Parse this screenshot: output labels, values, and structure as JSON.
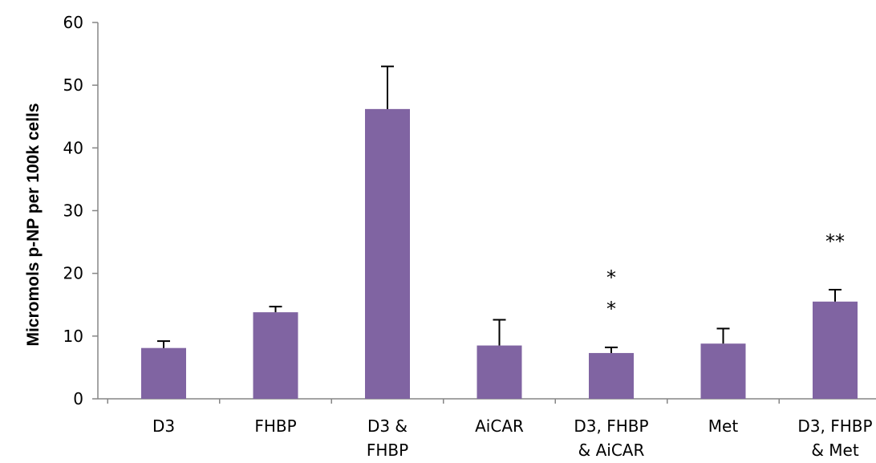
{
  "chart_data": {
    "type": "bar",
    "title": "",
    "xlabel": "",
    "ylabel": "Micromols p-NP per 100k cells",
    "ylim": [
      0,
      60
    ],
    "yticks": [
      0,
      10,
      20,
      30,
      40,
      50,
      60
    ],
    "grid": false,
    "legend": "none",
    "bar_color": "#8064a2",
    "categories": [
      [
        "D3"
      ],
      [
        "FHBP"
      ],
      [
        "D3 &",
        "FHBP"
      ],
      [
        "AiCAR"
      ],
      [
        "D3, FHBP",
        "& AiCAR"
      ],
      [
        "Met"
      ],
      [
        "D3, FHBP",
        "& Met"
      ]
    ],
    "values": [
      8.1,
      13.8,
      46.2,
      8.5,
      7.3,
      8.8,
      15.5
    ],
    "error_upper": [
      1.1,
      0.9,
      6.8,
      4.1,
      0.9,
      2.4,
      1.9
    ],
    "annotations": [
      {
        "category_index": 4,
        "text": "*"
      },
      {
        "category_index": 4,
        "text": "*"
      },
      {
        "category_index": 6,
        "text": "**"
      }
    ]
  }
}
